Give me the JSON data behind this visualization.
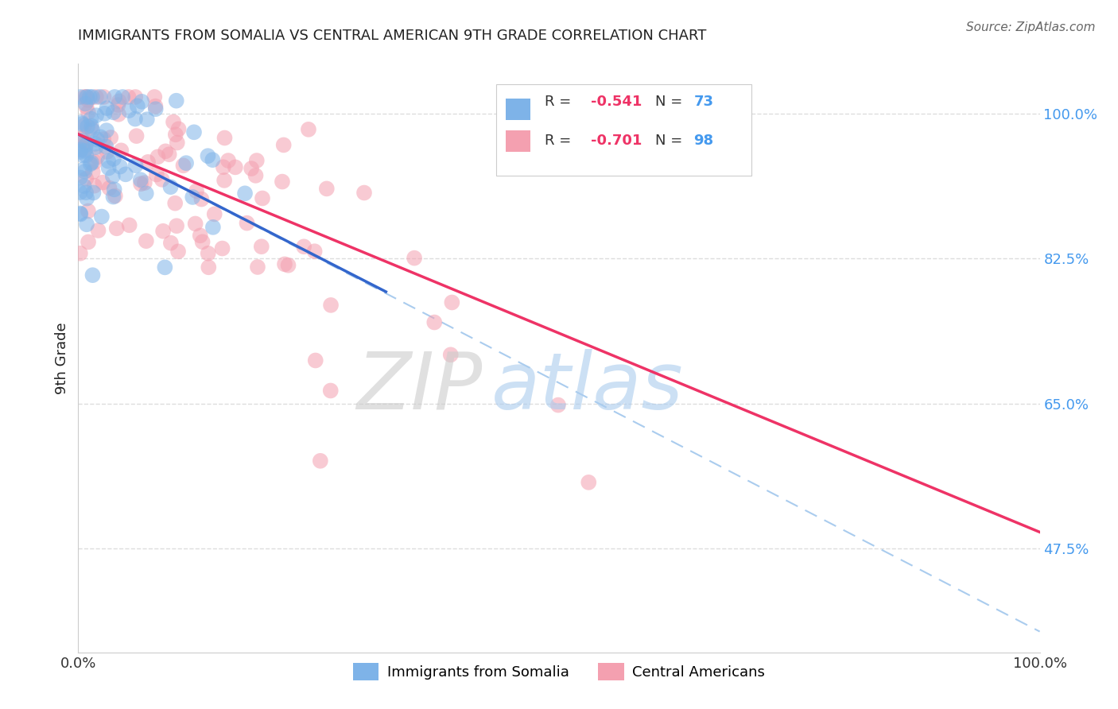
{
  "title": "IMMIGRANTS FROM SOMALIA VS CENTRAL AMERICAN 9TH GRADE CORRELATION CHART",
  "source_text": "Source: ZipAtlas.com",
  "ylabel": "9th Grade",
  "watermark": "ZIPatlas",
  "color_somalia": "#7EB3E8",
  "color_central": "#F4A0B0",
  "color_regression_somalia": "#3366CC",
  "color_regression_central": "#EE3366",
  "color_dashed": "#AACCEE",
  "background_color": "#FFFFFF",
  "grid_color": "#DDDDDD",
  "title_color": "#222222",
  "source_color": "#666666",
  "ytick_color": "#4499EE",
  "xtick_color": "#333333"
}
